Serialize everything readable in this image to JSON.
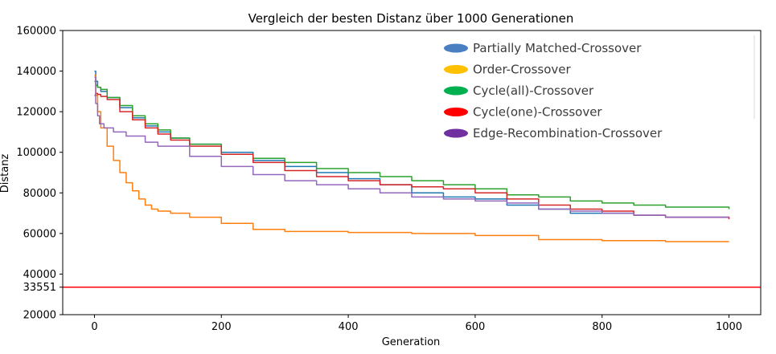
{
  "colors": {
    "pmx": "#1f77b4",
    "ox": "#ff7f0e",
    "cx_all": "#2ca02c",
    "cx_one": "#d62728",
    "erx": "#9467bd",
    "ref_line": "#ff0000",
    "legend_pmx": "#4a7fc1",
    "legend_ox": "#ffc000",
    "legend_cx_all": "#00b050",
    "legend_cx_one": "#ff0000",
    "legend_erx": "#7030a0"
  },
  "chart_data": {
    "type": "line",
    "title": "Vergleich der besten Distanz über 1000 Generationen",
    "xlabel": "Generation",
    "ylabel": "Distanz",
    "xlim": [
      -50,
      1050
    ],
    "ylim": [
      20000,
      160000
    ],
    "xticks": [
      0,
      200,
      400,
      600,
      800,
      1000
    ],
    "yticks": [
      20000,
      33551,
      40000,
      60000,
      80000,
      100000,
      120000,
      140000,
      160000
    ],
    "xtick_labels": [
      "0",
      "200",
      "400",
      "600",
      "800",
      "1000"
    ],
    "ytick_labels": [
      "20000",
      "33551",
      "40000",
      "60000",
      "80000",
      "100000",
      "120000",
      "140000",
      "160000"
    ],
    "grid": false,
    "legend_position": "top-right",
    "reference_line": {
      "y": 33551
    },
    "series": [
      {
        "name": "Partially Matched-Crossover",
        "key": "pmx",
        "points": [
          [
            0,
            140000
          ],
          [
            2,
            135000
          ],
          [
            5,
            132000
          ],
          [
            10,
            130000
          ],
          [
            20,
            127000
          ],
          [
            40,
            122000
          ],
          [
            60,
            117000
          ],
          [
            80,
            113000
          ],
          [
            100,
            110000
          ],
          [
            120,
            107000
          ],
          [
            150,
            104000
          ],
          [
            200,
            100000
          ],
          [
            250,
            96000
          ],
          [
            300,
            93000
          ],
          [
            350,
            90000
          ],
          [
            400,
            87000
          ],
          [
            450,
            84000
          ],
          [
            500,
            80000
          ],
          [
            550,
            78000
          ],
          [
            600,
            77000
          ],
          [
            650,
            74000
          ],
          [
            700,
            72000
          ],
          [
            750,
            70000
          ],
          [
            800,
            70000
          ],
          [
            850,
            69000
          ],
          [
            900,
            68000
          ],
          [
            1000,
            67500
          ]
        ]
      },
      {
        "name": "Order-Crossover",
        "key": "ox",
        "points": [
          [
            0,
            138000
          ],
          [
            2,
            128000
          ],
          [
            5,
            120000
          ],
          [
            10,
            112000
          ],
          [
            20,
            103000
          ],
          [
            30,
            96000
          ],
          [
            40,
            90000
          ],
          [
            50,
            85000
          ],
          [
            60,
            81000
          ],
          [
            70,
            77000
          ],
          [
            80,
            74000
          ],
          [
            90,
            72000
          ],
          [
            100,
            71000
          ],
          [
            120,
            70000
          ],
          [
            150,
            68000
          ],
          [
            200,
            65000
          ],
          [
            250,
            62000
          ],
          [
            300,
            61000
          ],
          [
            400,
            60500
          ],
          [
            500,
            60000
          ],
          [
            600,
            59000
          ],
          [
            700,
            57000
          ],
          [
            800,
            56500
          ],
          [
            900,
            56000
          ],
          [
            1000,
            56000
          ]
        ]
      },
      {
        "name": "Cycle(all)-Crossover",
        "key": "cx_all",
        "points": [
          [
            0,
            135000
          ],
          [
            2,
            133000
          ],
          [
            5,
            132000
          ],
          [
            10,
            131000
          ],
          [
            20,
            127000
          ],
          [
            40,
            123000
          ],
          [
            60,
            118000
          ],
          [
            80,
            114000
          ],
          [
            100,
            111000
          ],
          [
            120,
            107000
          ],
          [
            150,
            104000
          ],
          [
            200,
            99000
          ],
          [
            250,
            97000
          ],
          [
            300,
            95000
          ],
          [
            350,
            92000
          ],
          [
            400,
            90000
          ],
          [
            450,
            88000
          ],
          [
            500,
            86000
          ],
          [
            550,
            84000
          ],
          [
            600,
            82000
          ],
          [
            650,
            79000
          ],
          [
            700,
            78000
          ],
          [
            750,
            76000
          ],
          [
            800,
            75000
          ],
          [
            850,
            74000
          ],
          [
            900,
            73000
          ],
          [
            1000,
            72000
          ]
        ]
      },
      {
        "name": "Cycle(one)-Crossover",
        "key": "cx_one",
        "points": [
          [
            0,
            128000
          ],
          [
            2,
            129000
          ],
          [
            5,
            128500
          ],
          [
            10,
            127500
          ],
          [
            20,
            126000
          ],
          [
            40,
            120000
          ],
          [
            60,
            116000
          ],
          [
            80,
            112000
          ],
          [
            100,
            109000
          ],
          [
            120,
            106000
          ],
          [
            150,
            103000
          ],
          [
            200,
            99000
          ],
          [
            250,
            95000
          ],
          [
            300,
            91000
          ],
          [
            350,
            88000
          ],
          [
            400,
            86000
          ],
          [
            450,
            84000
          ],
          [
            500,
            83000
          ],
          [
            550,
            82000
          ],
          [
            600,
            80000
          ],
          [
            650,
            77000
          ],
          [
            700,
            74000
          ],
          [
            750,
            72000
          ],
          [
            800,
            71000
          ],
          [
            850,
            69000
          ],
          [
            900,
            68000
          ],
          [
            1000,
            67000
          ]
        ]
      },
      {
        "name": "Edge-Recombination-Crossover",
        "key": "erx",
        "points": [
          [
            0,
            137000
          ],
          [
            2,
            124000
          ],
          [
            5,
            118000
          ],
          [
            8,
            114000
          ],
          [
            15,
            112000
          ],
          [
            30,
            110000
          ],
          [
            50,
            108000
          ],
          [
            80,
            105000
          ],
          [
            100,
            103000
          ],
          [
            150,
            98000
          ],
          [
            200,
            93000
          ],
          [
            250,
            89000
          ],
          [
            300,
            86000
          ],
          [
            350,
            84000
          ],
          [
            400,
            82000
          ],
          [
            450,
            80000
          ],
          [
            500,
            78000
          ],
          [
            550,
            77000
          ],
          [
            600,
            76000
          ],
          [
            650,
            75000
          ],
          [
            700,
            72000
          ],
          [
            750,
            71000
          ],
          [
            800,
            70000
          ],
          [
            850,
            69000
          ],
          [
            900,
            68000
          ],
          [
            1000,
            68000
          ]
        ]
      }
    ]
  }
}
